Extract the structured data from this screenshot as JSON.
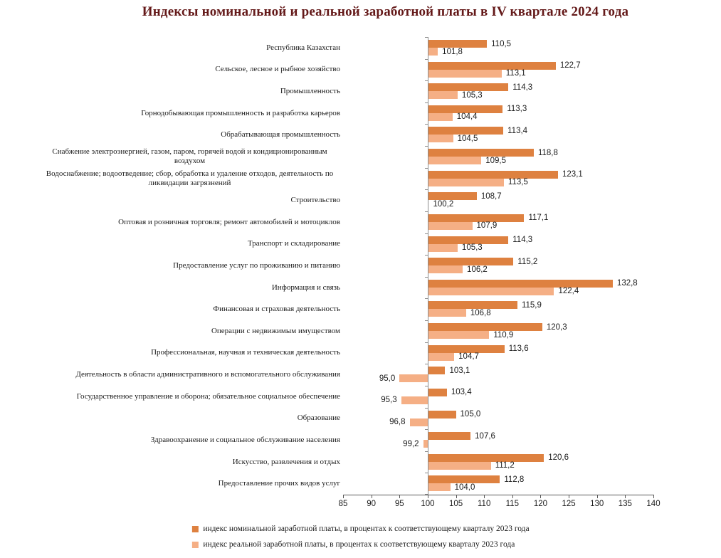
{
  "chart_data": {
    "type": "bar",
    "orientation": "horizontal",
    "title": "Индексы номинальной и реальной заработной платы в IV квартале 2024 года",
    "title_color": "#641919",
    "baseline": 100,
    "xlim": [
      85,
      140
    ],
    "x_ticks": [
      "85",
      "90",
      "95",
      "100",
      "105",
      "110",
      "115",
      "120",
      "125",
      "130",
      "135",
      "140"
    ],
    "grid": false,
    "legend_position": "bottom",
    "categories": [
      "Республика Казахстан",
      "Сельское, лесное и рыбное хозяйство",
      "Промышленность",
      "Горнодобывающая промышленность и разработка карьеров",
      "Обрабатывающая промышленность",
      "Снабжение электроэнергией, газом, паром, горячей водой и кондиционированным воздухом",
      "Водоснабжение; водоотведение; сбор, обработка и удаление отходов, деятельность по ликвидации загрязнений",
      "Строительство",
      "Оптовая и розничная торговля; ремонт автомобилей и мотоциклов",
      "Транспорт и складирование",
      "Предоставление услуг по проживанию и питанию",
      "Информация и связь",
      "Финансовая и страховая деятельность",
      "Операции с недвижимым имуществом",
      "Профессиональная, научная и техническая деятельность",
      "Деятельность в области административного и вспомогательного обслуживания",
      "Государственное управление и оборона; обязательное социальное обеспечение",
      "Образование",
      "Здравоохранение и социальное обслуживание населения",
      "Искусство, развлечения и отдых",
      "Предоставление прочих видов услуг"
    ],
    "series": [
      {
        "name": "индекс номинальной заработной платы, в процентах к соответствующему кварталу 2023 года",
        "color": "#DE8140",
        "values": [
          110.5,
          122.7,
          114.3,
          113.3,
          113.4,
          118.8,
          123.1,
          108.7,
          117.1,
          114.3,
          115.2,
          132.8,
          115.9,
          120.3,
          113.6,
          103.1,
          103.4,
          105.0,
          107.6,
          120.6,
          112.8
        ],
        "labels": [
          "110,5",
          "122,7",
          "114,3",
          "113,3",
          "113,4",
          "118,8",
          "123,1",
          "108,7",
          "117,1",
          "114,3",
          "115,2",
          "132,8",
          "115,9",
          "120,3",
          "113,6",
          "103,1",
          "103,4",
          "105,0",
          "107,6",
          "120,6",
          "112,8"
        ]
      },
      {
        "name": "индекс реальной заработной платы, в процентах к соответствующему кварталу 2023 года",
        "color": "#F5AF85",
        "values": [
          101.8,
          113.1,
          105.3,
          104.4,
          104.5,
          109.5,
          113.5,
          100.2,
          107.9,
          105.3,
          106.2,
          122.4,
          106.8,
          110.9,
          104.7,
          95.0,
          95.3,
          96.8,
          99.2,
          111.2,
          104.0
        ],
        "labels": [
          "101,8",
          "113,1",
          "105,3",
          "104,4",
          "104,5",
          "109,5",
          "113,5",
          "100,2",
          "107,9",
          "105,3",
          "106,2",
          "122,4",
          "106,8",
          "110,9",
          "104,7",
          "95,0",
          "95,3",
          "96,8",
          "99,2",
          "111,2",
          "104,0"
        ]
      }
    ]
  }
}
